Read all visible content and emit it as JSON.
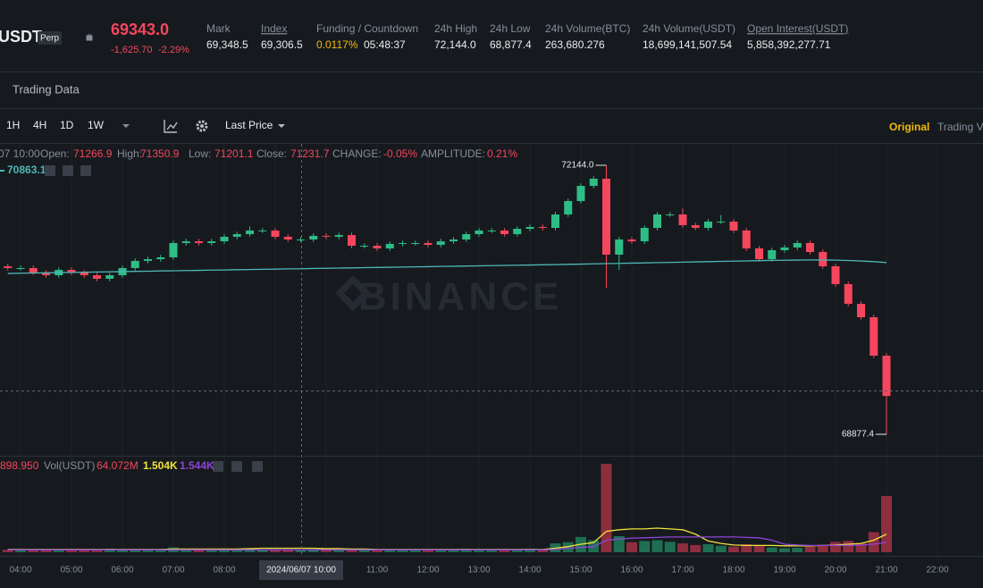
{
  "header": {
    "symbol": "USDT",
    "badge": "Perp",
    "price": "69343.0",
    "change": "-1,625.70",
    "change_pct": "-2.29%",
    "stats": [
      {
        "label": "Mark",
        "value": "69,348.5"
      },
      {
        "label": "Index",
        "value": "69,306.5"
      },
      {
        "label": "Funding / Countdown",
        "value": "0.0117%",
        "countdown": "05:48:37"
      },
      {
        "label": "24h High",
        "value": "72,144.0"
      },
      {
        "label": "24h Low",
        "value": "68,877.4"
      },
      {
        "label": "24h Volume(BTC)",
        "value": "263,680.276"
      },
      {
        "label": "24h Volume(USDT)",
        "value": "18,699,141,507.54"
      },
      {
        "label": "Open Interest(USDT)",
        "value": "5,858,392,277.71"
      }
    ]
  },
  "tab": "Trading Data",
  "toolbar": {
    "intervals": [
      "1H",
      "4H",
      "1D",
      "1W"
    ],
    "price_type": "Last Price",
    "view_active": "Original",
    "view_other": "Trading V"
  },
  "legend": {
    "time": "07 10:00",
    "items": [
      {
        "label": "Open:",
        "value": "71266.9"
      },
      {
        "label": "High:",
        "value": "71350.9"
      },
      {
        "label": "Low:",
        "value": "71201.1"
      },
      {
        "label": "Close:",
        "value": "71231.7"
      },
      {
        "label": "CHANGE:",
        "value": "-0.05%"
      },
      {
        "label": "AMPLITUDE:",
        "value": "0.21%"
      }
    ],
    "ma": "70863.1"
  },
  "volume_legend": {
    "first": "898.950",
    "label": "Vol(USDT)",
    "vol": "64.072M",
    "ma1": "1.504K",
    "ma2": "1.544K"
  },
  "watermark": "BINANCE",
  "crosshair_label": "2024/06/07 10:00",
  "chart_data": {
    "type": "candlestick",
    "up_color": "#2ebd85",
    "down_color": "#f6465d",
    "ylim": [
      68617,
      72415
    ],
    "candles": {
      "open": [
        70918,
        70896,
        70896,
        70842,
        70809,
        70874,
        70842,
        70809,
        70766,
        70809,
        70896,
        70983,
        71004,
        71026,
        71200,
        71221,
        71200,
        71221,
        71276,
        71308,
        71352,
        71352,
        71276,
        71243,
        71243,
        71287,
        71276,
        71297,
        71167,
        71167,
        71135,
        71189,
        71200,
        71200,
        71178,
        71221,
        71243,
        71308,
        71352,
        71352,
        71308,
        71373,
        71395,
        71384,
        71547,
        71710,
        71894,
        71981,
        71059,
        71243,
        71221,
        71384,
        71547,
        71547,
        71417,
        71384,
        71460,
        71460,
        71352,
        71135,
        71004,
        71113,
        71146,
        71200,
        71091,
        70918,
        70701,
        70462,
        70299,
        69832
      ],
      "high": [
        70948,
        70926,
        70926,
        70872,
        70904,
        70904,
        70872,
        70839,
        70839,
        70926,
        71013,
        71034,
        71056,
        71230,
        71251,
        71251,
        71251,
        71306,
        71338,
        71400,
        71382,
        71382,
        71306,
        71273,
        71317,
        71317,
        71327,
        71327,
        71197,
        71197,
        71219,
        71230,
        71230,
        71230,
        71251,
        71273,
        71338,
        71382,
        71382,
        71382,
        71403,
        71425,
        71425,
        71577,
        71740,
        71924,
        72011,
        72144,
        71273,
        71273,
        71414,
        71577,
        71577,
        71620,
        71447,
        71490,
        71540,
        71490,
        71382,
        71165,
        71143,
        71176,
        71230,
        71230,
        71121,
        70948,
        70731,
        70492,
        70329,
        69862
      ],
      "low": [
        70866,
        70866,
        70812,
        70779,
        70779,
        70812,
        70779,
        70736,
        70736,
        70779,
        70866,
        70953,
        70974,
        70996,
        71170,
        71170,
        71170,
        71191,
        71246,
        71278,
        71322,
        71246,
        71213,
        71213,
        71213,
        71246,
        71246,
        71137,
        71137,
        71105,
        71105,
        71159,
        71170,
        71148,
        71148,
        71191,
        71213,
        71278,
        71322,
        71278,
        71278,
        71343,
        71354,
        71354,
        71517,
        71680,
        71864,
        70657,
        70874,
        71191,
        71191,
        71354,
        71517,
        71387,
        71354,
        71354,
        71430,
        71322,
        71105,
        70974,
        70974,
        71083,
        71116,
        71061,
        70888,
        70671,
        70432,
        70269,
        69802,
        68877.4
      ],
      "close": [
        70896,
        70896,
        70842,
        70809,
        70874,
        70842,
        70809,
        70766,
        70809,
        70896,
        70983,
        71004,
        71026,
        71200,
        71221,
        71200,
        71221,
        71276,
        71308,
        71352,
        71352,
        71276,
        71243,
        71243,
        71287,
        71276,
        71297,
        71167,
        71167,
        71135,
        71189,
        71200,
        71200,
        71178,
        71221,
        71243,
        71308,
        71352,
        71352,
        71308,
        71373,
        71395,
        71384,
        71547,
        71710,
        71894,
        71981,
        71059,
        71243,
        71221,
        71384,
        71547,
        71547,
        71417,
        71384,
        71460,
        71460,
        71352,
        71135,
        71004,
        71113,
        71146,
        71200,
        71091,
        70918,
        70701,
        70462,
        70299,
        69832,
        69343.0
      ]
    },
    "ma": {
      "color": "#4fb6b6",
      "values": [
        70830,
        70833,
        70836,
        70838,
        70841,
        70843,
        70846,
        70848,
        70851,
        70853,
        70856,
        70858,
        70861,
        70863,
        70866,
        70868,
        70871,
        70873,
        70876,
        70878,
        70881,
        70883,
        70886,
        70888,
        70891,
        70893,
        70896,
        70898,
        70901,
        70903,
        70906,
        70908,
        70911,
        70913,
        70916,
        70918,
        70921,
        70923,
        70926,
        70928,
        70931,
        70933,
        70936,
        70938,
        70941,
        70944,
        70947,
        70950,
        70953,
        70956,
        70959,
        70962,
        70965,
        70968,
        70971,
        70974,
        70977,
        70980,
        70983,
        70986,
        70989,
        70991,
        70993,
        70995,
        70994,
        70992,
        70988,
        70982,
        70974,
        70962
      ]
    },
    "annotations": [
      {
        "value": 72144,
        "label": "72144.0"
      },
      {
        "value": 68877.4,
        "label": "68877.4"
      }
    ],
    "xticks": [
      "04:00",
      "05:00",
      "06:00",
      "07:00",
      "08:00",
      null,
      null,
      "11:00",
      "12:00",
      "13:00",
      "14:00",
      "15:00",
      "16:00",
      "17:00",
      "18:00",
      "19:00",
      "20:00",
      "21:00",
      "22:00"
    ],
    "volume": {
      "ylim": [
        0,
        240
      ],
      "up_color": "#1f6e52",
      "down_color": "#8c2e3e",
      "values": [
        6,
        5,
        7,
        6,
        8,
        5,
        6,
        7,
        9,
        6,
        8,
        5,
        6,
        12,
        7,
        6,
        5,
        7,
        8,
        9,
        6,
        7,
        5,
        6,
        8,
        10,
        7,
        6,
        5,
        6,
        7,
        6,
        5,
        6,
        7,
        8,
        9,
        6,
        5,
        7,
        8,
        9,
        7,
        22,
        25,
        38,
        30,
        220,
        40,
        25,
        28,
        30,
        26,
        22,
        18,
        20,
        16,
        14,
        20,
        18,
        12,
        10,
        11,
        14,
        18,
        26,
        28,
        22,
        50,
        140
      ],
      "ma": [
        {
          "color": "#f0e33a",
          "values": [
            7,
            7,
            7,
            7,
            7,
            7,
            7,
            7,
            7,
            7,
            7,
            7,
            7,
            8,
            8,
            8,
            8,
            8,
            8,
            9,
            10,
            10,
            10,
            10,
            10,
            9,
            9,
            8,
            8,
            7,
            7,
            7,
            7,
            7,
            7,
            7,
            7,
            7,
            7,
            7,
            7,
            7,
            7,
            10,
            14,
            20,
            24,
            52,
            56,
            58,
            58,
            60,
            58,
            56,
            45,
            28,
            22,
            18,
            17,
            17,
            17,
            16,
            16,
            16,
            17,
            18,
            20,
            22,
            30,
            45
          ]
        },
        {
          "color": "#8e44d8",
          "values": [
            6,
            6,
            6,
            6,
            6,
            6,
            6,
            6,
            6,
            6,
            6,
            6,
            6,
            6,
            6,
            6,
            6,
            6,
            6,
            6,
            6,
            6,
            6,
            6,
            6,
            6,
            6,
            6,
            6,
            6,
            6,
            6,
            6,
            6,
            6,
            6,
            6,
            6,
            6,
            6,
            6,
            6,
            6,
            7,
            10,
            12,
            14,
            30,
            33,
            35,
            36,
            37,
            38,
            38,
            38,
            38,
            38,
            38,
            37,
            36,
            30,
            20,
            18,
            17,
            17,
            17,
            17,
            18,
            20,
            25
          ]
        }
      ]
    }
  }
}
